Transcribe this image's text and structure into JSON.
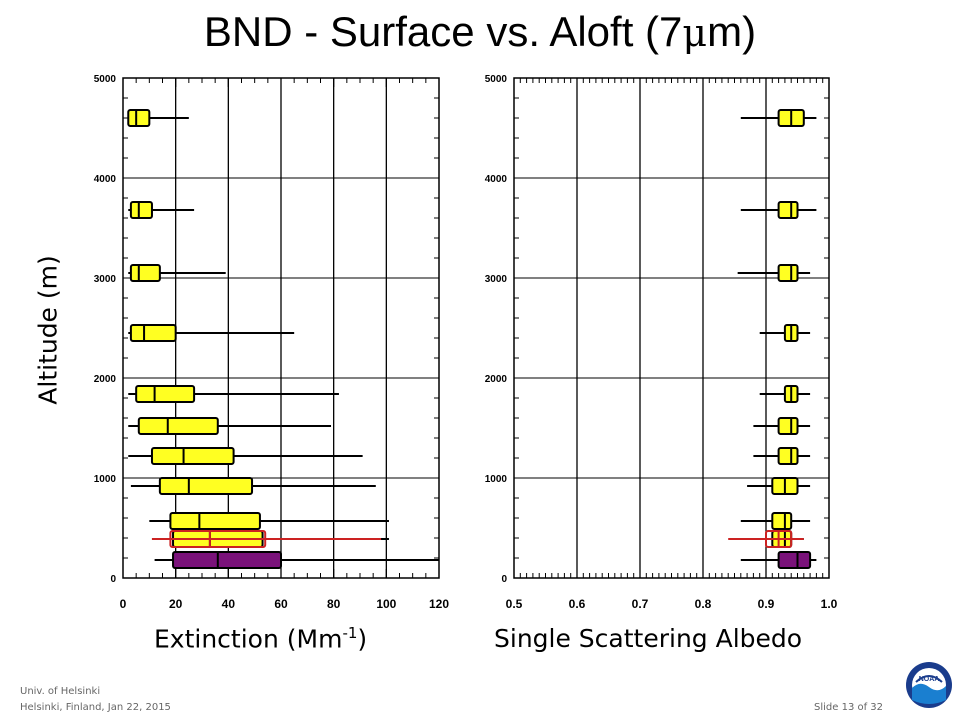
{
  "title": {
    "main": "BND - Surface vs. Aloft (7",
    "mu": "μ",
    "unit_end": "m)"
  },
  "ylabel": "Altitude (m)",
  "xlabel_left": {
    "prefix": "Extinction (Mm",
    "sup": "-1",
    "suffix": ")"
  },
  "xlabel_right": "Single Scattering Albedo",
  "footer": {
    "org": "Univ. of Helsinki",
    "event": "Helsinki, Finland, Jan 22, 2015",
    "slide": "Slide 13 of 32"
  },
  "logo": {
    "text": "NOAA",
    "icon": "noaa-logo-icon"
  },
  "colors": {
    "aloft": "#ffff22",
    "surface": "#7a127a",
    "overlay": "#cc2222",
    "axes": "#000000"
  },
  "chart_data": [
    {
      "type": "box",
      "title": "",
      "xlabel": "Extinction (Mm-1)",
      "ylabel": "Altitude (m)",
      "xlim": [
        0,
        120
      ],
      "ylim": [
        0,
        5000
      ],
      "xticks": [
        0,
        20,
        40,
        60,
        80,
        100,
        120
      ],
      "yticks": [
        0,
        1000,
        2000,
        3000,
        4000,
        5000
      ],
      "grid": true,
      "boxes": [
        {
          "alt": 4600,
          "whisker_low": 2,
          "q1": 2,
          "median": 5,
          "q3": 10,
          "whisker_high": 25,
          "group": "aloft"
        },
        {
          "alt": 3680,
          "whisker_low": 2,
          "q1": 3,
          "median": 6,
          "q3": 11,
          "whisker_high": 27,
          "group": "aloft"
        },
        {
          "alt": 3050,
          "whisker_low": 2,
          "q1": 3,
          "median": 6,
          "q3": 14,
          "whisker_high": 39,
          "group": "aloft"
        },
        {
          "alt": 2450,
          "whisker_low": 2,
          "q1": 3,
          "median": 8,
          "q3": 20,
          "whisker_high": 65,
          "group": "aloft"
        },
        {
          "alt": 1840,
          "whisker_low": 2,
          "q1": 5,
          "median": 12,
          "q3": 27,
          "whisker_high": 82,
          "group": "aloft"
        },
        {
          "alt": 1520,
          "whisker_low": 2,
          "q1": 6,
          "median": 17,
          "q3": 36,
          "whisker_high": 79,
          "group": "aloft"
        },
        {
          "alt": 1220,
          "whisker_low": 2,
          "q1": 11,
          "median": 23,
          "q3": 42,
          "whisker_high": 91,
          "group": "aloft"
        },
        {
          "alt": 920,
          "whisker_low": 3,
          "q1": 14,
          "median": 25,
          "q3": 49,
          "whisker_high": 96,
          "group": "aloft"
        },
        {
          "alt": 570,
          "whisker_low": 10,
          "q1": 18,
          "median": 29,
          "q3": 52,
          "whisker_high": 101,
          "group": "aloft"
        },
        {
          "alt": 390,
          "whisker_low": 11,
          "q1": 19,
          "median": 33,
          "q3": 53,
          "whisker_high": 101,
          "group": "aloft"
        },
        {
          "alt": 390,
          "whisker_low": 11,
          "q1": 18,
          "median": 33,
          "q3": 54,
          "whisker_high": 98,
          "group": "overlay"
        },
        {
          "alt": 180,
          "whisker_low": 12,
          "q1": 19,
          "median": 36,
          "q3": 60,
          "whisker_high": 120,
          "group": "surface"
        }
      ]
    },
    {
      "type": "box",
      "title": "",
      "xlabel": "Single Scattering Albedo",
      "ylabel": "Altitude (m)",
      "xlim": [
        0.5,
        1.0
      ],
      "ylim": [
        0,
        5000
      ],
      "xticks": [
        0.5,
        0.6,
        0.7,
        0.8,
        0.9,
        1.0
      ],
      "xtick_labels": [
        "0.5",
        "0.6",
        "0.7",
        "0.8",
        "0.9",
        "1.0"
      ],
      "yticks": [
        0,
        1000,
        2000,
        3000,
        4000,
        5000
      ],
      "grid": true,
      "boxes": [
        {
          "alt": 4600,
          "whisker_low": 0.86,
          "q1": 0.92,
          "median": 0.94,
          "q3": 0.96,
          "whisker_high": 0.98,
          "group": "aloft"
        },
        {
          "alt": 3680,
          "whisker_low": 0.86,
          "q1": 0.92,
          "median": 0.94,
          "q3": 0.95,
          "whisker_high": 0.98,
          "group": "aloft"
        },
        {
          "alt": 3050,
          "whisker_low": 0.855,
          "q1": 0.92,
          "median": 0.94,
          "q3": 0.95,
          "whisker_high": 0.97,
          "group": "aloft"
        },
        {
          "alt": 2450,
          "whisker_low": 0.89,
          "q1": 0.93,
          "median": 0.94,
          "q3": 0.95,
          "whisker_high": 0.97,
          "group": "aloft"
        },
        {
          "alt": 1840,
          "whisker_low": 0.89,
          "q1": 0.93,
          "median": 0.94,
          "q3": 0.95,
          "whisker_high": 0.97,
          "group": "aloft"
        },
        {
          "alt": 1520,
          "whisker_low": 0.88,
          "q1": 0.92,
          "median": 0.94,
          "q3": 0.95,
          "whisker_high": 0.97,
          "group": "aloft"
        },
        {
          "alt": 1220,
          "whisker_low": 0.88,
          "q1": 0.92,
          "median": 0.94,
          "q3": 0.95,
          "whisker_high": 0.97,
          "group": "aloft"
        },
        {
          "alt": 920,
          "whisker_low": 0.87,
          "q1": 0.91,
          "median": 0.93,
          "q3": 0.95,
          "whisker_high": 0.97,
          "group": "aloft"
        },
        {
          "alt": 570,
          "whisker_low": 0.86,
          "q1": 0.91,
          "median": 0.93,
          "q3": 0.94,
          "whisker_high": 0.97,
          "group": "aloft"
        },
        {
          "alt": 390,
          "whisker_low": 0.86,
          "q1": 0.91,
          "median": 0.93,
          "q3": 0.94,
          "whisker_high": 0.96,
          "group": "aloft"
        },
        {
          "alt": 390,
          "whisker_low": 0.84,
          "q1": 0.9,
          "median": 0.92,
          "q3": 0.94,
          "whisker_high": 0.96,
          "group": "overlay"
        },
        {
          "alt": 180,
          "whisker_low": 0.86,
          "q1": 0.92,
          "median": 0.95,
          "q3": 0.97,
          "whisker_high": 0.98,
          "group": "surface"
        }
      ]
    }
  ]
}
